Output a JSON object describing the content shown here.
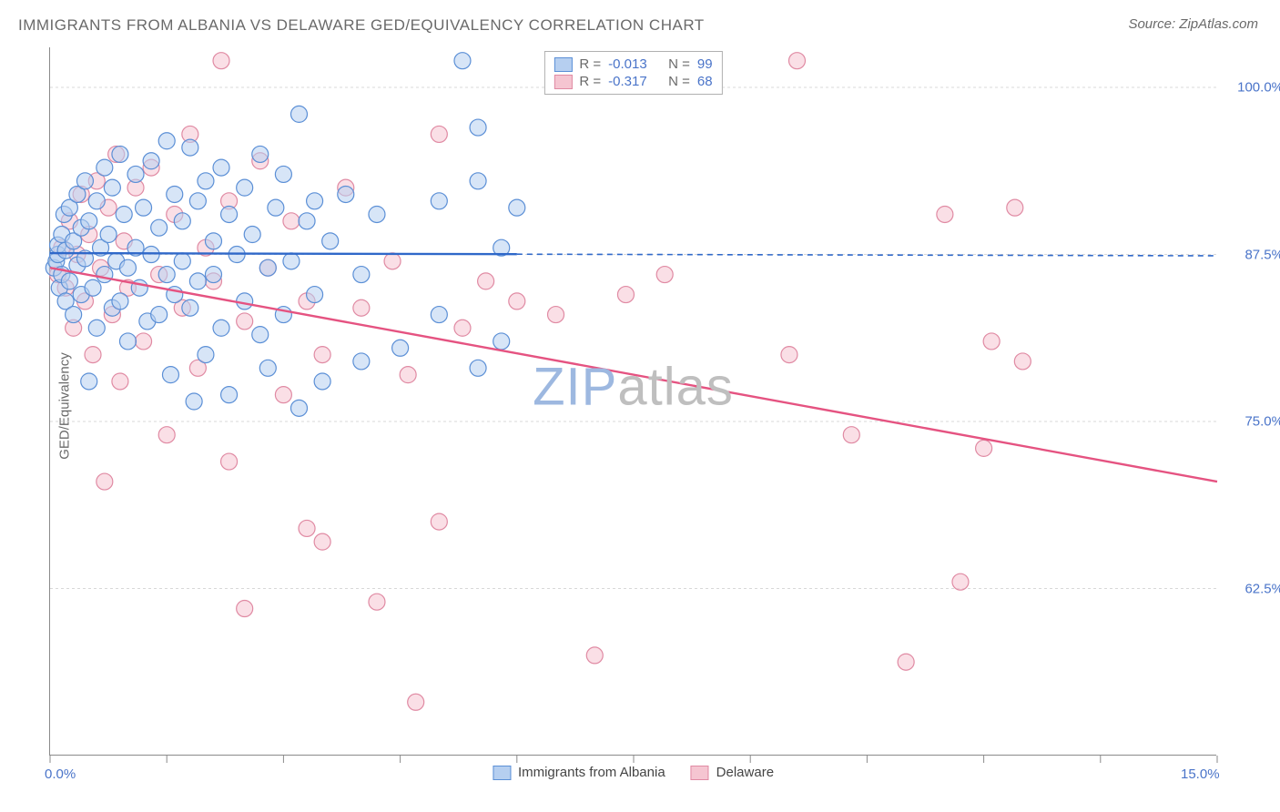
{
  "title": "IMMIGRANTS FROM ALBANIA VS DELAWARE GED/EQUIVALENCY CORRELATION CHART",
  "source": "Source: ZipAtlas.com",
  "ylabel": "GED/Equivalency",
  "watermark": {
    "zip": "ZIP",
    "atlas": "atlas",
    "zip_color": "#9db8e0",
    "atlas_color": "#bfbfbf"
  },
  "chart": {
    "type": "scatter",
    "xlim": [
      0,
      15
    ],
    "ylim": [
      50,
      103
    ],
    "background_color": "#ffffff",
    "grid_color": "#d8d8d8",
    "border_color": "#8a8a8a",
    "xticks": [
      0,
      1.5,
      3,
      4.5,
      6,
      7.5,
      9,
      10.5,
      12,
      13.5,
      15
    ],
    "xtick_labels_shown": {
      "0": "0.0%",
      "15": "15.0%"
    },
    "yticks": [
      62.5,
      75.0,
      87.5,
      100.0
    ],
    "ytick_labels": [
      "62.5%",
      "75.0%",
      "87.5%",
      "100.0%"
    ],
    "series": [
      {
        "name": "Immigrants from Albania",
        "key": "albania",
        "fill": "#b6cff0",
        "stroke": "#5b8fd6",
        "fill_opacity": 0.55,
        "marker_r": 9,
        "R": "-0.013",
        "N": "99",
        "trend": {
          "y0": 87.6,
          "y15": 87.4,
          "solid_until_x": 6.0,
          "color": "#2f68c9",
          "width": 2.4
        },
        "points": [
          [
            0.05,
            86.5
          ],
          [
            0.08,
            87.0
          ],
          [
            0.1,
            87.5
          ],
          [
            0.1,
            88.2
          ],
          [
            0.12,
            85.0
          ],
          [
            0.15,
            89.0
          ],
          [
            0.15,
            86.0
          ],
          [
            0.18,
            90.5
          ],
          [
            0.2,
            84.0
          ],
          [
            0.2,
            87.8
          ],
          [
            0.25,
            91.0
          ],
          [
            0.25,
            85.5
          ],
          [
            0.3,
            88.5
          ],
          [
            0.3,
            83.0
          ],
          [
            0.35,
            92.0
          ],
          [
            0.35,
            86.7
          ],
          [
            0.4,
            89.5
          ],
          [
            0.4,
            84.5
          ],
          [
            0.45,
            93.0
          ],
          [
            0.45,
            87.2
          ],
          [
            0.5,
            78.0
          ],
          [
            0.5,
            90.0
          ],
          [
            0.55,
            85.0
          ],
          [
            0.6,
            91.5
          ],
          [
            0.6,
            82.0
          ],
          [
            0.65,
            88.0
          ],
          [
            0.7,
            94.0
          ],
          [
            0.7,
            86.0
          ],
          [
            0.75,
            89.0
          ],
          [
            0.8,
            83.5
          ],
          [
            0.8,
            92.5
          ],
          [
            0.85,
            87.0
          ],
          [
            0.9,
            95.0
          ],
          [
            0.9,
            84.0
          ],
          [
            0.95,
            90.5
          ],
          [
            1.0,
            86.5
          ],
          [
            1.0,
            81.0
          ],
          [
            1.1,
            93.5
          ],
          [
            1.1,
            88.0
          ],
          [
            1.15,
            85.0
          ],
          [
            1.2,
            91.0
          ],
          [
            1.25,
            82.5
          ],
          [
            1.3,
            94.5
          ],
          [
            1.3,
            87.5
          ],
          [
            1.4,
            89.5
          ],
          [
            1.4,
            83.0
          ],
          [
            1.5,
            96.0
          ],
          [
            1.5,
            86.0
          ],
          [
            1.55,
            78.5
          ],
          [
            1.6,
            92.0
          ],
          [
            1.6,
            84.5
          ],
          [
            1.7,
            90.0
          ],
          [
            1.7,
            87.0
          ],
          [
            1.8,
            95.5
          ],
          [
            1.8,
            83.5
          ],
          [
            1.85,
            76.5
          ],
          [
            1.9,
            91.5
          ],
          [
            1.9,
            85.5
          ],
          [
            2.0,
            93.0
          ],
          [
            2.0,
            80.0
          ],
          [
            2.1,
            88.5
          ],
          [
            2.1,
            86.0
          ],
          [
            2.2,
            94.0
          ],
          [
            2.2,
            82.0
          ],
          [
            2.3,
            77.0
          ],
          [
            2.3,
            90.5
          ],
          [
            2.4,
            87.5
          ],
          [
            2.5,
            92.5
          ],
          [
            2.5,
            84.0
          ],
          [
            2.6,
            89.0
          ],
          [
            2.7,
            95.0
          ],
          [
            2.7,
            81.5
          ],
          [
            2.8,
            86.5
          ],
          [
            2.8,
            79.0
          ],
          [
            2.9,
            91.0
          ],
          [
            3.0,
            93.5
          ],
          [
            3.0,
            83.0
          ],
          [
            3.1,
            87.0
          ],
          [
            3.2,
            98.0
          ],
          [
            3.2,
            76.0
          ],
          [
            3.3,
            90.0
          ],
          [
            3.4,
            91.5
          ],
          [
            3.4,
            84.5
          ],
          [
            3.5,
            78.0
          ],
          [
            3.6,
            88.5
          ],
          [
            3.8,
            92.0
          ],
          [
            4.0,
            79.5
          ],
          [
            4.0,
            86.0
          ],
          [
            4.2,
            90.5
          ],
          [
            4.5,
            80.5
          ],
          [
            5.0,
            91.5
          ],
          [
            5.0,
            83.0
          ],
          [
            5.3,
            102.0
          ],
          [
            5.5,
            93.0
          ],
          [
            5.5,
            79.0
          ],
          [
            5.5,
            97.0
          ],
          [
            5.8,
            88.0
          ],
          [
            5.8,
            81.0
          ],
          [
            6.0,
            91.0
          ]
        ]
      },
      {
        "name": "Delaware",
        "key": "delaware",
        "fill": "#f5c5d1",
        "stroke": "#e08aa3",
        "fill_opacity": 0.55,
        "marker_r": 9,
        "R": "-0.317",
        "N": "68",
        "trend": {
          "y0": 86.5,
          "y15": 70.5,
          "solid_until_x": 15.0,
          "color": "#e55381",
          "width": 2.4
        },
        "points": [
          [
            0.1,
            86.0
          ],
          [
            0.15,
            88.0
          ],
          [
            0.2,
            85.0
          ],
          [
            0.25,
            90.0
          ],
          [
            0.3,
            82.0
          ],
          [
            0.35,
            87.5
          ],
          [
            0.4,
            92.0
          ],
          [
            0.45,
            84.0
          ],
          [
            0.5,
            89.0
          ],
          [
            0.55,
            80.0
          ],
          [
            0.6,
            93.0
          ],
          [
            0.65,
            86.5
          ],
          [
            0.7,
            70.5
          ],
          [
            0.75,
            91.0
          ],
          [
            0.8,
            83.0
          ],
          [
            0.85,
            95.0
          ],
          [
            0.9,
            78.0
          ],
          [
            0.95,
            88.5
          ],
          [
            1.0,
            85.0
          ],
          [
            1.1,
            92.5
          ],
          [
            1.2,
            81.0
          ],
          [
            1.3,
            94.0
          ],
          [
            1.4,
            86.0
          ],
          [
            1.5,
            74.0
          ],
          [
            1.6,
            90.5
          ],
          [
            1.7,
            83.5
          ],
          [
            1.8,
            96.5
          ],
          [
            1.9,
            79.0
          ],
          [
            2.0,
            88.0
          ],
          [
            2.1,
            85.5
          ],
          [
            2.2,
            102.0
          ],
          [
            2.3,
            91.5
          ],
          [
            2.3,
            72.0
          ],
          [
            2.5,
            61.0
          ],
          [
            2.5,
            82.5
          ],
          [
            2.7,
            94.5
          ],
          [
            2.8,
            86.5
          ],
          [
            3.0,
            77.0
          ],
          [
            3.1,
            90.0
          ],
          [
            3.3,
            67.0
          ],
          [
            3.3,
            84.0
          ],
          [
            3.5,
            80.0
          ],
          [
            3.5,
            66.0
          ],
          [
            3.8,
            92.5
          ],
          [
            4.0,
            83.5
          ],
          [
            4.2,
            61.5
          ],
          [
            4.4,
            87.0
          ],
          [
            4.6,
            78.5
          ],
          [
            4.7,
            54.0
          ],
          [
            5.0,
            67.5
          ],
          [
            5.0,
            96.5
          ],
          [
            5.3,
            82.0
          ],
          [
            5.6,
            85.5
          ],
          [
            6.0,
            84.0
          ],
          [
            6.5,
            83.0
          ],
          [
            7.0,
            57.5
          ],
          [
            7.4,
            84.5
          ],
          [
            7.9,
            86.0
          ],
          [
            9.5,
            80.0
          ],
          [
            9.6,
            102.0
          ],
          [
            10.3,
            74.0
          ],
          [
            11.0,
            57.0
          ],
          [
            11.5,
            90.5
          ],
          [
            11.7,
            63.0
          ],
          [
            12.0,
            73.0
          ],
          [
            12.1,
            81.0
          ],
          [
            12.4,
            91.0
          ],
          [
            12.5,
            79.5
          ]
        ]
      }
    ],
    "legend_top": {
      "R_label": "R =",
      "N_label": "N =",
      "text_color": "#6a6a6a",
      "value_color": "#4a74c9"
    },
    "legend_bottom": [
      {
        "label": "Immigrants from Albania",
        "fill": "#b6cff0",
        "stroke": "#5b8fd6"
      },
      {
        "label": "Delaware",
        "fill": "#f5c5d1",
        "stroke": "#e08aa3"
      }
    ]
  }
}
